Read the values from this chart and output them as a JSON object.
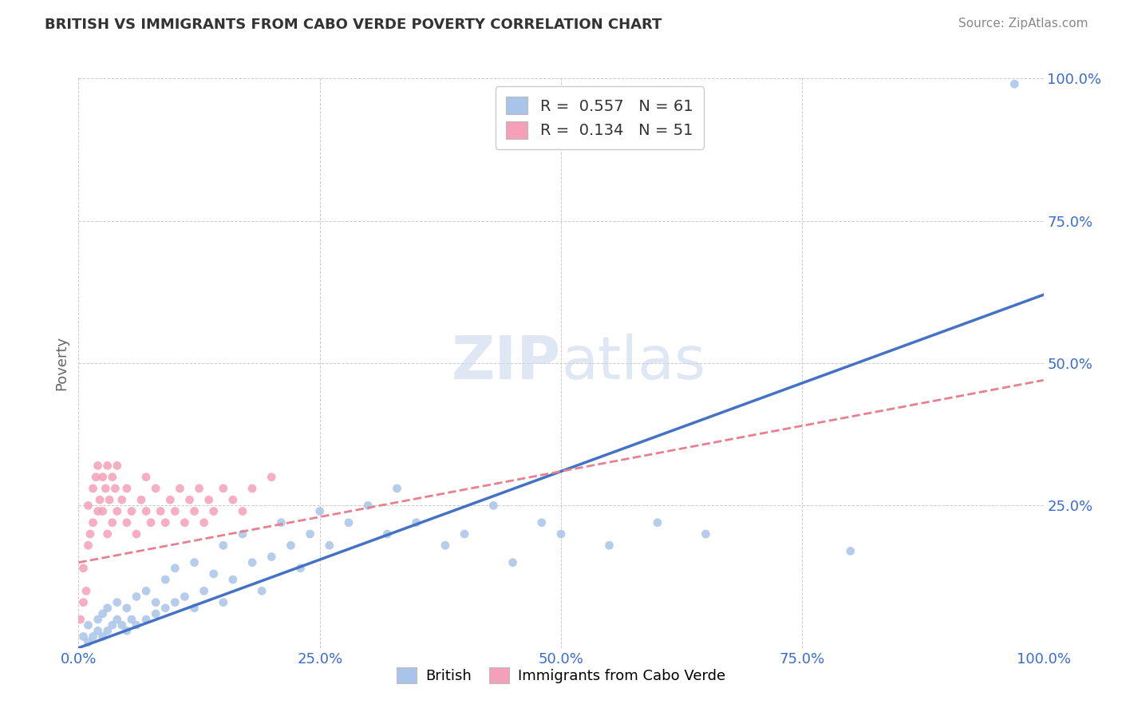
{
  "title": "BRITISH VS IMMIGRANTS FROM CABO VERDE POVERTY CORRELATION CHART",
  "source": "Source: ZipAtlas.com",
  "ylabel": "Poverty",
  "watermark": "ZIPatlas",
  "british_color": "#a8c4e8",
  "cabo_color": "#f4a0b8",
  "british_line_color": "#4472c4",
  "cabo_line_color": "#e88090",
  "background_color": "#ffffff",
  "grid_color": "#cccccc",
  "xlim": [
    0,
    1
  ],
  "ylim": [
    0,
    1
  ],
  "xticks": [
    0.0,
    0.25,
    0.5,
    0.75,
    1.0
  ],
  "yticks": [
    0.0,
    0.25,
    0.5,
    0.75,
    1.0
  ],
  "xticklabels": [
    "0.0%",
    "25.0%",
    "50.0%",
    "75.0%",
    "100.0%"
  ],
  "right_yticklabels": [
    "",
    "25.0%",
    "50.0%",
    "75.0%",
    "100.0%"
  ],
  "brit_line_x0": 0.0,
  "brit_line_y0": 0.0,
  "brit_line_x1": 1.0,
  "brit_line_y1": 0.62,
  "cabo_line_x0": 0.0,
  "cabo_line_y0": 0.15,
  "cabo_line_x1": 1.0,
  "cabo_line_y1": 0.47,
  "british_x": [
    0.005,
    0.01,
    0.01,
    0.015,
    0.02,
    0.02,
    0.025,
    0.025,
    0.03,
    0.03,
    0.035,
    0.04,
    0.04,
    0.045,
    0.05,
    0.05,
    0.055,
    0.06,
    0.06,
    0.07,
    0.07,
    0.08,
    0.08,
    0.09,
    0.09,
    0.1,
    0.1,
    0.11,
    0.12,
    0.12,
    0.13,
    0.14,
    0.15,
    0.15,
    0.16,
    0.17,
    0.18,
    0.19,
    0.2,
    0.21,
    0.22,
    0.23,
    0.24,
    0.25,
    0.26,
    0.28,
    0.3,
    0.32,
    0.33,
    0.35,
    0.38,
    0.4,
    0.43,
    0.45,
    0.48,
    0.5,
    0.55,
    0.6,
    0.65,
    0.8,
    0.97
  ],
  "british_y": [
    0.02,
    0.01,
    0.04,
    0.02,
    0.03,
    0.05,
    0.02,
    0.06,
    0.03,
    0.07,
    0.04,
    0.05,
    0.08,
    0.04,
    0.03,
    0.07,
    0.05,
    0.04,
    0.09,
    0.05,
    0.1,
    0.06,
    0.08,
    0.07,
    0.12,
    0.08,
    0.14,
    0.09,
    0.07,
    0.15,
    0.1,
    0.13,
    0.08,
    0.18,
    0.12,
    0.2,
    0.15,
    0.1,
    0.16,
    0.22,
    0.18,
    0.14,
    0.2,
    0.24,
    0.18,
    0.22,
    0.25,
    0.2,
    0.28,
    0.22,
    0.18,
    0.2,
    0.25,
    0.15,
    0.22,
    0.2,
    0.18,
    0.22,
    0.2,
    0.17,
    0.99
  ],
  "cabo_x": [
    0.002,
    0.005,
    0.005,
    0.008,
    0.01,
    0.01,
    0.012,
    0.015,
    0.015,
    0.018,
    0.02,
    0.02,
    0.022,
    0.025,
    0.025,
    0.028,
    0.03,
    0.03,
    0.032,
    0.035,
    0.035,
    0.038,
    0.04,
    0.04,
    0.045,
    0.05,
    0.05,
    0.055,
    0.06,
    0.065,
    0.07,
    0.07,
    0.075,
    0.08,
    0.085,
    0.09,
    0.095,
    0.1,
    0.105,
    0.11,
    0.115,
    0.12,
    0.125,
    0.13,
    0.135,
    0.14,
    0.15,
    0.16,
    0.17,
    0.18,
    0.2
  ],
  "cabo_y": [
    0.05,
    0.08,
    0.14,
    0.1,
    0.18,
    0.25,
    0.2,
    0.28,
    0.22,
    0.3,
    0.24,
    0.32,
    0.26,
    0.3,
    0.24,
    0.28,
    0.32,
    0.2,
    0.26,
    0.3,
    0.22,
    0.28,
    0.24,
    0.32,
    0.26,
    0.22,
    0.28,
    0.24,
    0.2,
    0.26,
    0.24,
    0.3,
    0.22,
    0.28,
    0.24,
    0.22,
    0.26,
    0.24,
    0.28,
    0.22,
    0.26,
    0.24,
    0.28,
    0.22,
    0.26,
    0.24,
    0.28,
    0.26,
    0.24,
    0.28,
    0.3
  ]
}
